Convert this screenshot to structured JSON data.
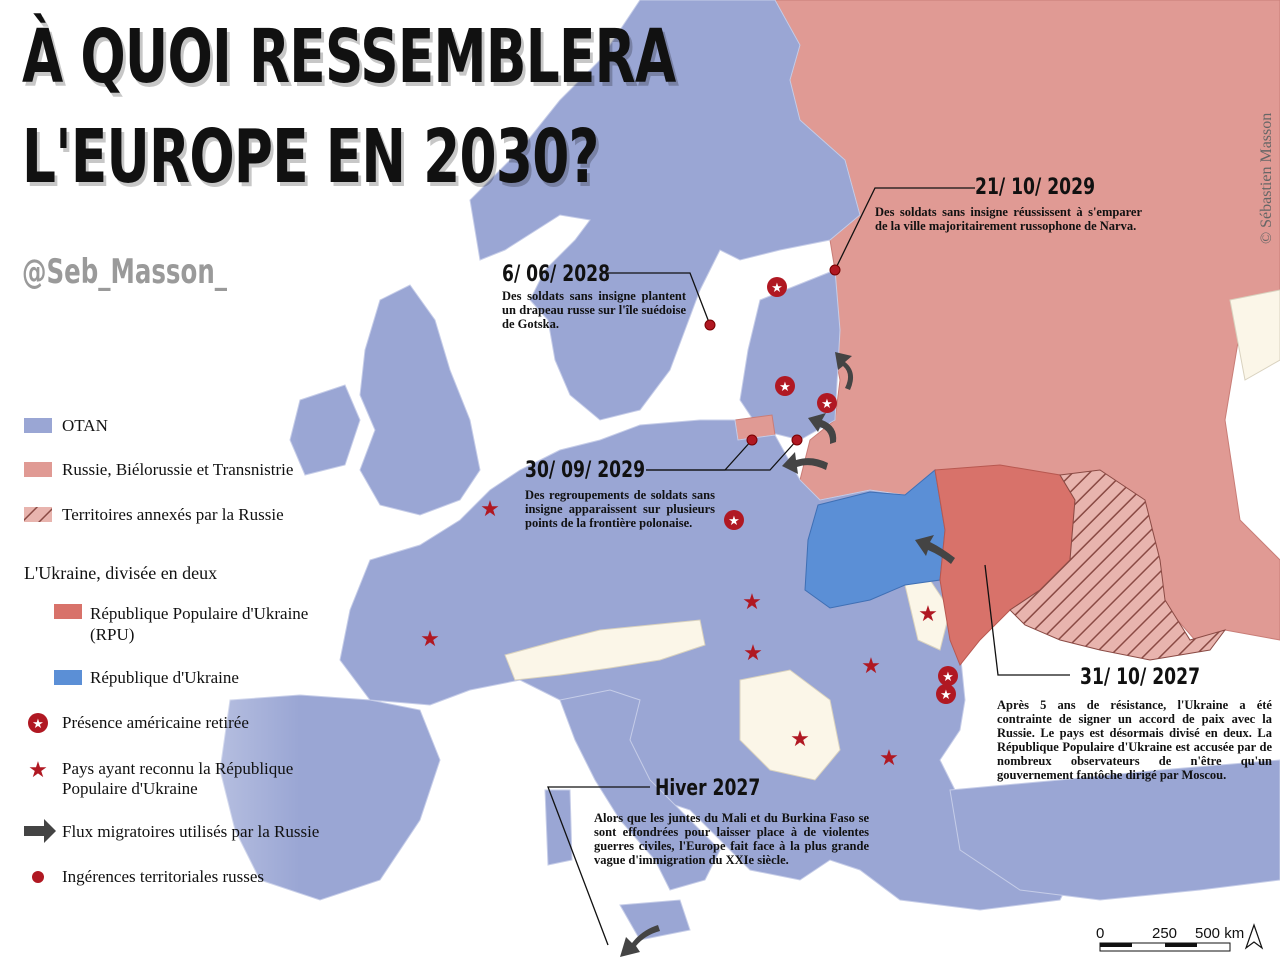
{
  "title": {
    "line1": "À QUOI RESSEMBLERA",
    "line2": "L'EUROPE EN 2030?"
  },
  "handle": "@Seb_Masson_",
  "copyright": "© Sébastien Masson",
  "colors": {
    "otan": "#9aa6d4",
    "russia": "#e09a94",
    "annexed": "#e5b0aa",
    "rpu": "#d8726a",
    "republic_ukraine": "#5b8fd6",
    "neutral": "#fbf6e8",
    "sea": "#ffffff",
    "marker": "#b01822",
    "arrow": "#444444"
  },
  "legend": {
    "otan": "OTAN",
    "russia": "Russie, Biélorussie et Transnistrie",
    "annexed": "Territoires annexés par la Russie",
    "ukraine_heading": "L'Ukraine,  divisée en deux",
    "rpu_line1": "République Populaire d'Ukraine",
    "rpu_line2": "(RPU)",
    "republic": "République d'Ukraine",
    "us_withdrawn": "Présence américaine retirée",
    "recognized_line1": "Pays ayant reconnu la République",
    "recognized_line2": "Populaire d'Ukraine",
    "migration": "Flux migratoires utilisés par la Russie",
    "interference": "Ingérences territoriales russes"
  },
  "events": [
    {
      "date": "21/ 10/ 2029",
      "text": "Des soldats sans insigne réussissent à s'emparer de la ville majoritairement russophone de Narva."
    },
    {
      "date": "6/ 06/ 2028",
      "text": "Des soldats sans insigne plantent un drapeau russe sur l'île suédoise de Gotska."
    },
    {
      "date": "30/ 09/ 2029",
      "text": "Des regroupements de soldats sans insigne apparaissent sur plusieurs points de la frontière polonaise."
    },
    {
      "date": "31/ 10/ 2027",
      "text": "Après 5 ans de résistance, l'Ukraine a été contrainte de signer un accord de paix avec la Russie. Le pays est désormais divisé en deux. La République Populaire d'Ukraine est accusée par de nombreux observateurs de n'être qu'un gouvernement fantôche dirigé par Moscou."
    },
    {
      "date": "Hiver 2027",
      "text": "Alors que les juntes du Mali et du Burkina Faso se sont effondrées pour laisser place à de violentes guerres civiles, l'Europe fait face à la plus grande vague d'immigration du XXIe siècle."
    }
  ],
  "scale": {
    "labels": [
      "0",
      "250",
      "500 km"
    ],
    "north": "north-arrow-icon"
  }
}
